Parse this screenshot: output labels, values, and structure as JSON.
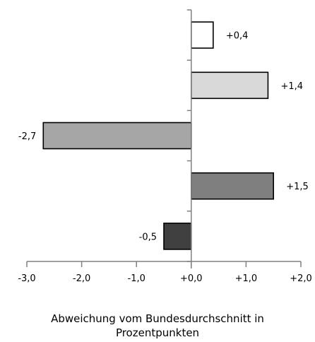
{
  "chart_data": {
    "type": "bar",
    "orientation": "horizontal",
    "values": [
      0.4,
      1.4,
      -2.7,
      1.5,
      -0.5
    ],
    "data_labels": [
      "+0,4",
      "+1,4",
      "-2,7",
      "+1,5",
      "-0,5"
    ],
    "bar_colors": [
      "#ffffff",
      "#d9d9d9",
      "#a6a6a6",
      "#7f7f7f",
      "#404040"
    ],
    "xlim": [
      -3.0,
      2.0
    ],
    "x_ticks": [
      -3.0,
      -2.0,
      -1.0,
      0.0,
      1.0,
      2.0
    ],
    "x_tick_labels": [
      "-3,0",
      "-2,0",
      "-1,0",
      "+0,0",
      "+1,0",
      "+2,0"
    ],
    "xlabel": [
      "Abweichung vom Bundesdurchschnitt in",
      "Prozentpunkten"
    ],
    "ylabel": "",
    "title": "",
    "grid": false,
    "legend": "none"
  }
}
